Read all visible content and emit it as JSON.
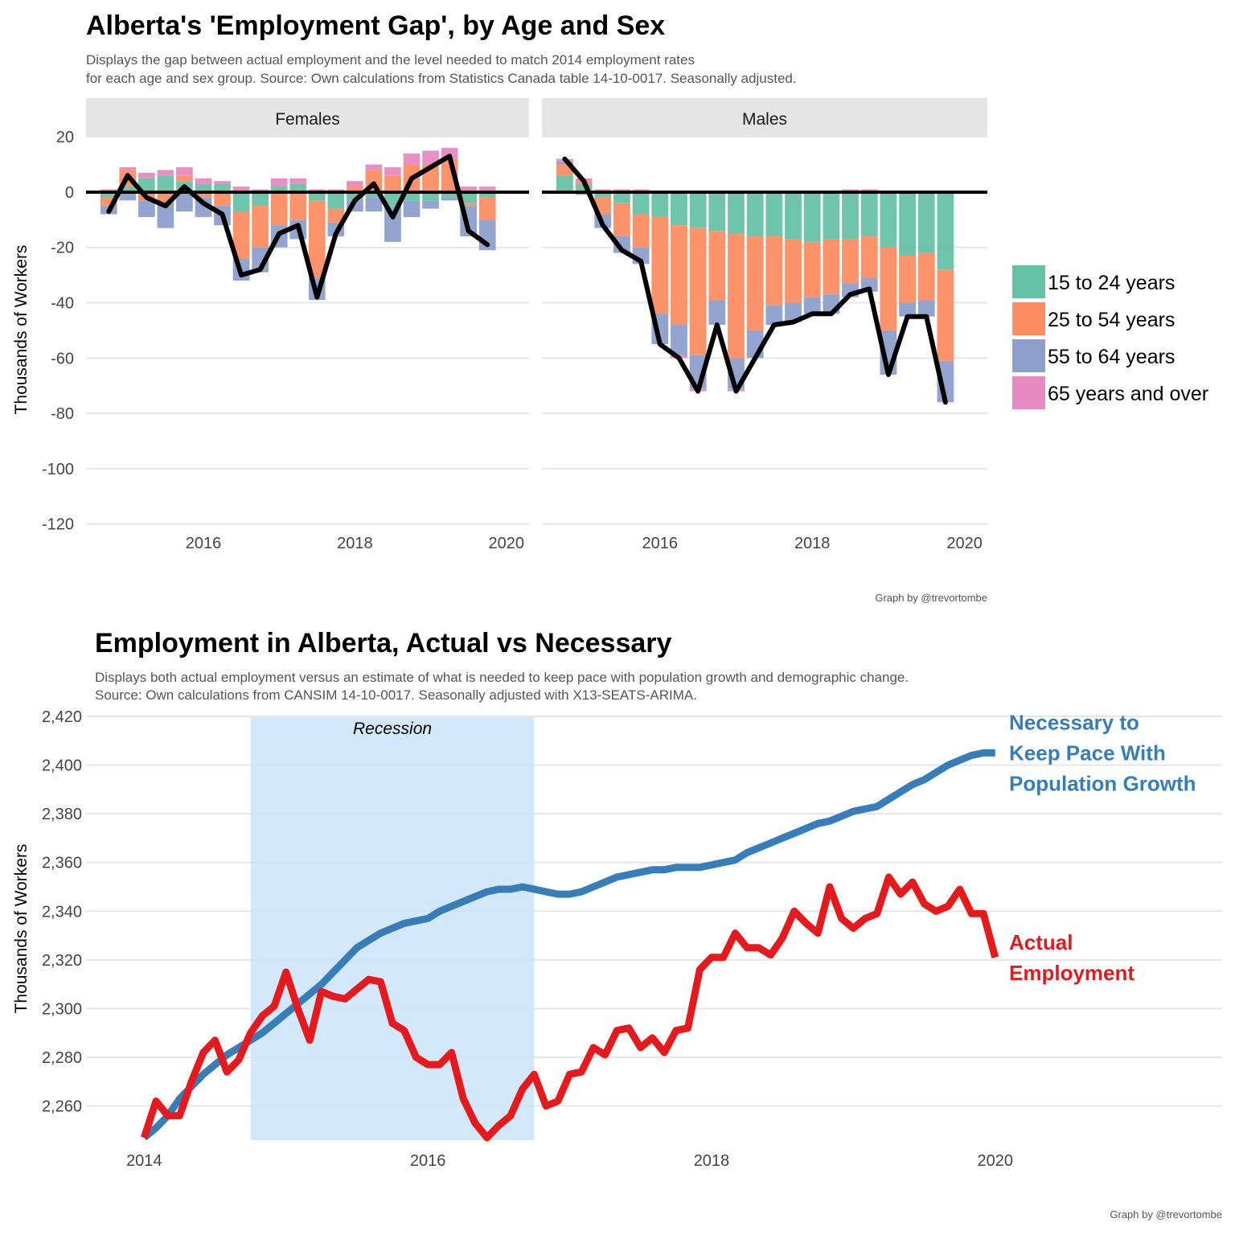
{
  "chart_data": [
    {
      "type": "bar",
      "stacked": true,
      "title": "Alberta's 'Employment Gap', by Age and Sex",
      "subtitle": [
        "Displays the gap between actual employment and the level needed to match 2014 employment rates",
        "for each age and sex group. Source: Own calculations from Statistics Canada table 14-10-0017. Seasonally adjusted."
      ],
      "y_label": "Thousands of Workers",
      "caption": "Graph by @trevortombe",
      "x": [
        2014.75,
        2015,
        2015.25,
        2015.5,
        2015.75,
        2016,
        2016.25,
        2016.5,
        2016.75,
        2017,
        2017.25,
        2017.5,
        2017.75,
        2018,
        2018.25,
        2018.5,
        2018.75,
        2019,
        2019.25,
        2019.5,
        2019.75
      ],
      "xlim": [
        2014.45,
        2020.3
      ],
      "xticks": [
        2016,
        2018,
        2020
      ],
      "ylim": [
        -123,
        21.5
      ],
      "yticks": [
        -120,
        -100,
        -80,
        -60,
        -40,
        -20,
        0,
        20
      ],
      "grid": true,
      "hline": 0,
      "legend": "right",
      "series": [
        {
          "name": "15 to 24 years",
          "color": "#66c2a5"
        },
        {
          "name": "25 to 54 years",
          "color": "#fc8d62"
        },
        {
          "name": "55 to 64 years",
          "color": "#8da0cb"
        },
        {
          "name": "65 years and over",
          "color": "#e78ac3"
        }
      ],
      "total_color": "#000000",
      "facets": [
        {
          "name": "Females",
          "values": [
            [
              -2,
              2,
              5,
              6,
              4,
              3,
              3,
              -7,
              -5,
              2,
              3,
              -3,
              -6,
              -3,
              -2,
              -5,
              -3,
              -3,
              -2,
              -4,
              -2
            ],
            [
              -3,
              6,
              -3,
              -4,
              2,
              -2,
              -5,
              -17,
              -15,
              -12,
              -10,
              -28,
              -5,
              2,
              8,
              6,
              10,
              10,
              12,
              -1,
              -8
            ],
            [
              -3,
              -3,
              -6,
              -9,
              -7,
              -7,
              -7,
              -8,
              -9,
              -8,
              -7,
              -8,
              -5,
              -4,
              -5,
              -13,
              -6,
              -3,
              -1,
              -11,
              -11
            ],
            [
              1,
              1,
              2,
              2,
              3,
              2,
              1,
              2,
              1,
              3,
              2,
              1,
              1,
              2,
              2,
              3,
              4,
              5,
              4,
              2,
              2
            ]
          ],
          "total": [
            -7,
            6,
            -2,
            -5,
            2,
            -4,
            -8,
            -30,
            -28,
            -15,
            -12,
            -38,
            -15,
            -3,
            3,
            -9,
            5,
            9,
            13,
            -14,
            -19
          ]
        },
        {
          "name": "Males",
          "values": [
            [
              6,
              3,
              -2,
              -4,
              -8,
              -9,
              -12,
              -13,
              -14,
              -15,
              -16,
              -16,
              -17,
              -18,
              -17,
              -17,
              -16,
              -20,
              -23,
              -22,
              -28
            ],
            [
              4,
              1,
              -6,
              -12,
              -12,
              -35,
              -36,
              -46,
              -25,
              -45,
              -34,
              -25,
              -23,
              -20,
              -20,
              -16,
              -15,
              -30,
              -17,
              -17,
              -33
            ],
            [
              1,
              -1,
              -5,
              -6,
              -6,
              -11,
              -11,
              -12,
              -9,
              -11,
              -10,
              -7,
              -7,
              -6,
              -7,
              -5,
              -5,
              -16,
              -5,
              -6,
              -15
            ],
            [
              1,
              1,
              1,
              1,
              1,
              0,
              -1,
              -1,
              0,
              -1,
              0,
              0,
              0,
              0,
              0,
              1,
              1,
              0,
              0,
              0,
              0
            ]
          ],
          "total": [
            12,
            4,
            -12,
            -21,
            -25,
            -55,
            -60,
            -72,
            -48,
            -72,
            -60,
            -48,
            -47,
            -44,
            -44,
            -37,
            -35,
            -66,
            -45,
            -45,
            -76
          ]
        }
      ]
    },
    {
      "type": "line",
      "title": "Employment in Alberta, Actual vs Necessary",
      "subtitle": [
        "Displays both actual employment versus an estimate of what is needed to keep pace with population growth and demographic change.",
        "Source: Own calculations from CANSIM 14-10-0017. Seasonally adjusted with X13-SEATS-ARIMA."
      ],
      "y_label": "Thousands of Workers",
      "caption": "Graph by @trevortombe",
      "xlim": [
        2013.59,
        2021.6
      ],
      "xticks": [
        2014,
        2016,
        2018,
        2020
      ],
      "ylim": [
        2246,
        2420
      ],
      "yticks": [
        {
          "value": 2260,
          "label": "2,260"
        },
        {
          "value": 2280,
          "label": "2,280"
        },
        {
          "value": 2300,
          "label": "2,300"
        },
        {
          "value": 2320,
          "label": "2,320"
        },
        {
          "value": 2340,
          "label": "2,340"
        },
        {
          "value": 2360,
          "label": "2,360"
        },
        {
          "value": 2380,
          "label": "2,380"
        },
        {
          "value": 2400,
          "label": "2,400"
        },
        {
          "value": 2420,
          "label": "2,420"
        }
      ],
      "grid": true,
      "shade": {
        "x": [
          2014.75,
          2016.75
        ],
        "label": "Recession",
        "color": "#cfe5fb"
      },
      "x": [
        2014,
        2014.083,
        2014.167,
        2014.25,
        2014.333,
        2014.417,
        2014.5,
        2014.583,
        2014.667,
        2014.75,
        2014.833,
        2014.917,
        2015,
        2015.083,
        2015.167,
        2015.25,
        2015.333,
        2015.417,
        2015.5,
        2015.583,
        2015.667,
        2015.75,
        2015.833,
        2015.917,
        2016,
        2016.083,
        2016.167,
        2016.25,
        2016.333,
        2016.417,
        2016.5,
        2016.583,
        2016.667,
        2016.75,
        2016.833,
        2016.917,
        2017,
        2017.083,
        2017.167,
        2017.25,
        2017.333,
        2017.417,
        2017.5,
        2017.583,
        2017.667,
        2017.75,
        2017.833,
        2017.917,
        2018,
        2018.083,
        2018.167,
        2018.25,
        2018.333,
        2018.417,
        2018.5,
        2018.583,
        2018.667,
        2018.75,
        2018.833,
        2018.917,
        2019,
        2019.083,
        2019.167,
        2019.25,
        2019.333,
        2019.417,
        2019.5,
        2019.583,
        2019.667,
        2019.75,
        2019.833,
        2019.917,
        2020
      ],
      "series": [
        {
          "name": [
            "Necessary to",
            "Keep Pace With",
            "Population Growth"
          ],
          "color": "#377eb8",
          "values": [
            2247,
            2251,
            2256,
            2263,
            2268,
            2273,
            2277,
            2281,
            2284,
            2287,
            2290,
            2294,
            2298,
            2302,
            2306,
            2310,
            2315,
            2320,
            2325,
            2328,
            2331,
            2333,
            2335,
            2336,
            2337,
            2340,
            2342,
            2344,
            2346,
            2348,
            2349,
            2349,
            2350,
            2349,
            2348,
            2347,
            2347,
            2348,
            2350,
            2352,
            2354,
            2355,
            2356,
            2357,
            2357,
            2358,
            2358,
            2358,
            2359,
            2360,
            2361,
            2364,
            2366,
            2368,
            2370,
            2372,
            2374,
            2376,
            2377,
            2379,
            2381,
            2382,
            2383,
            2386,
            2389,
            2392,
            2394,
            2397,
            2400,
            2402,
            2404,
            2405,
            2405
          ]
        },
        {
          "name": [
            "Actual",
            "Employment"
          ],
          "color": "#e41a1c",
          "values": [
            2247,
            2262,
            2256,
            2256,
            2270,
            2282,
            2287,
            2274,
            2279,
            2290,
            2297,
            2301,
            2315,
            2300,
            2287,
            2307,
            2305,
            2304,
            2308,
            2312,
            2311,
            2294,
            2291,
            2280,
            2277,
            2277,
            2282,
            2263,
            2253,
            2247,
            2252,
            2256,
            2267,
            2273,
            2260,
            2262,
            2273,
            2274,
            2284,
            2281,
            2291,
            2292,
            2284,
            2288,
            2282,
            2291,
            2292,
            2316,
            2321,
            2321,
            2331,
            2325,
            2325,
            2322,
            2329,
            2340,
            2335,
            2331,
            2350,
            2337,
            2333,
            2337,
            2339,
            2354,
            2347,
            2352,
            2343,
            2340,
            2342,
            2349,
            2339,
            2339,
            2321
          ]
        }
      ]
    }
  ]
}
